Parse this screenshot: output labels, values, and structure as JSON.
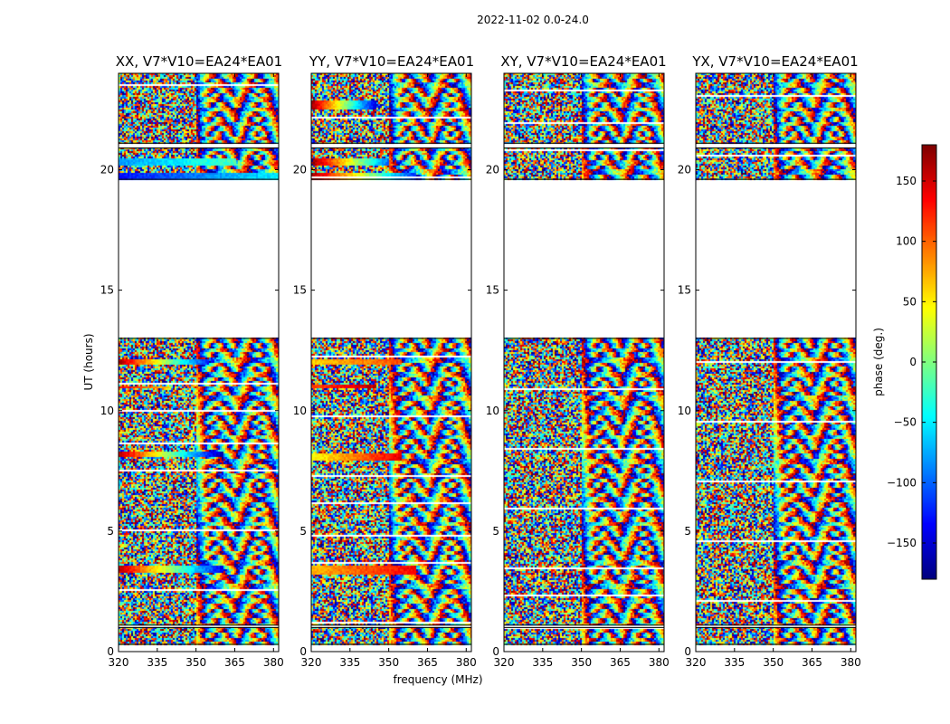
{
  "figure_title": "2022-11-02 0.0-24.0",
  "colors": {
    "background": "#ffffff",
    "axis": "#000000"
  },
  "colormap": "jet",
  "chart_data": {
    "type": "heatmap",
    "suptitle": "2022-11-02 0.0-24.0",
    "xlabel": "frequency (MHz)",
    "ylabel": "UT (hours)",
    "xlim": [
      320,
      382
    ],
    "ylim": [
      0,
      24
    ],
    "xticks": [
      320,
      335,
      350,
      365,
      380
    ],
    "yticks": [
      0,
      5,
      10,
      15,
      20
    ],
    "panels": [
      {
        "title": "XX, V7*V10=EA24*EA01",
        "label_prefix": "XX",
        "no_data_hours": [
          [
            0.0,
            0.3
          ],
          [
            1.0,
            1.1
          ],
          [
            13.0,
            19.6
          ],
          [
            20.9,
            21.1
          ]
        ],
        "coherent_bands": [
          {
            "ut": [
              19.6,
              19.9
            ],
            "phase_start": -130,
            "phase_end": -50,
            "freq_end": 382
          },
          {
            "ut": [
              20.2,
              20.5
            ],
            "phase_start": -80,
            "phase_end": -20,
            "freq_end": 365
          },
          {
            "ut": [
              11.9,
              12.1
            ],
            "phase_start": 165,
            "phase_end": -130,
            "freq_end": 355
          },
          {
            "ut": [
              10.9,
              11.0
            ],
            "phase_start": 140,
            "phase_end": 60,
            "freq_end": 340
          },
          {
            "ut": [
              8.1,
              8.3
            ],
            "phase_start": 165,
            "phase_end": -170,
            "freq_end": 360
          },
          {
            "ut": [
              3.3,
              3.6
            ],
            "phase_start": 160,
            "phase_end": -140,
            "freq_end": 360
          }
        ]
      },
      {
        "title": "YY, V7*V10=EA24*EA01",
        "label_prefix": "YY",
        "no_data_hours": [
          [
            0.0,
            0.3
          ],
          [
            1.0,
            1.1
          ],
          [
            13.0,
            19.6
          ],
          [
            20.9,
            21.1
          ]
        ],
        "coherent_bands": [
          {
            "ut": [
              19.6,
              19.9
            ],
            "phase_start": 170,
            "phase_end": -120,
            "freq_end": 360
          },
          {
            "ut": [
              20.2,
              20.5
            ],
            "phase_start": 175,
            "phase_end": -100,
            "freq_end": 350
          },
          {
            "ut": [
              22.5,
              22.9
            ],
            "phase_start": 170,
            "phase_end": -150,
            "freq_end": 345
          },
          {
            "ut": [
              11.9,
              12.1
            ],
            "phase_start": 60,
            "phase_end": 110,
            "freq_end": 355
          },
          {
            "ut": [
              10.9,
              11.1
            ],
            "phase_start": 110,
            "phase_end": 160,
            "freq_end": 345
          },
          {
            "ut": [
              7.9,
              8.2
            ],
            "phase_start": 40,
            "phase_end": 150,
            "freq_end": 355
          },
          {
            "ut": [
              3.2,
              3.6
            ],
            "phase_start": 70,
            "phase_end": 140,
            "freq_end": 360
          }
        ]
      },
      {
        "title": "XY, V7*V10=EA24*EA01",
        "label_prefix": "XY",
        "no_data_hours": [
          [
            0.0,
            0.3
          ],
          [
            1.0,
            1.1
          ],
          [
            13.0,
            19.6
          ],
          [
            20.9,
            21.1
          ]
        ],
        "coherent_bands": []
      },
      {
        "title": "YX, V7*V10=EA24*EA01",
        "label_prefix": "YX",
        "no_data_hours": [
          [
            0.0,
            0.3
          ],
          [
            1.0,
            1.1
          ],
          [
            13.0,
            19.6
          ],
          [
            20.9,
            21.1
          ]
        ],
        "coherent_bands": []
      }
    ],
    "colorbar": {
      "label": "phase (deg.)",
      "range": [
        -180,
        180
      ],
      "ticks": [
        150,
        100,
        50,
        0,
        -50,
        -100,
        -150
      ],
      "tick_labels": [
        "150",
        "100",
        "50",
        "0",
        "−50",
        "−100",
        "−150"
      ]
    }
  }
}
